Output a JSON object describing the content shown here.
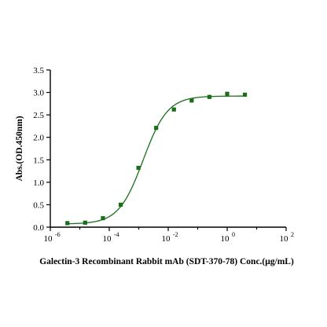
{
  "chart_data": {
    "type": "scatter",
    "xlabel": "Galectin-3 Recombinant Rabbit mAb (SDT-370-78) Conc.(μg/mL)",
    "ylabel": "Abs.(OD.450nm)",
    "xscale": "log",
    "xlim": [
      1e-06,
      100
    ],
    "ylim": [
      0,
      3.5
    ],
    "x_ticks": [
      {
        "base": "10",
        "exp": "-6"
      },
      {
        "base": "10",
        "exp": "-4"
      },
      {
        "base": "10",
        "exp": "-2"
      },
      {
        "base": "10",
        "exp": "0"
      },
      {
        "base": "10",
        "exp": "2"
      }
    ],
    "y_ticks": [
      "0.0",
      "0.5",
      "1.0",
      "1.5",
      "2.0",
      "2.5",
      "3.0",
      "3.5"
    ],
    "grid": false,
    "marker_color": "#1a6e1a",
    "line_color": "#1a6e1a",
    "series": [
      {
        "x": [
          3.8e-06,
          1.52e-05,
          6.1e-05,
          0.000244,
          0.000977,
          0.0039,
          0.0156,
          0.0625,
          0.25,
          1.0,
          4.0
        ],
        "y": [
          0.09,
          0.1,
          0.2,
          0.5,
          1.32,
          2.21,
          2.62,
          2.82,
          2.9,
          2.97,
          2.95
        ]
      }
    ],
    "fit": {
      "bottom": 0.07,
      "top": 2.92,
      "log_ec50": -2.85,
      "hill": 1.05
    }
  }
}
